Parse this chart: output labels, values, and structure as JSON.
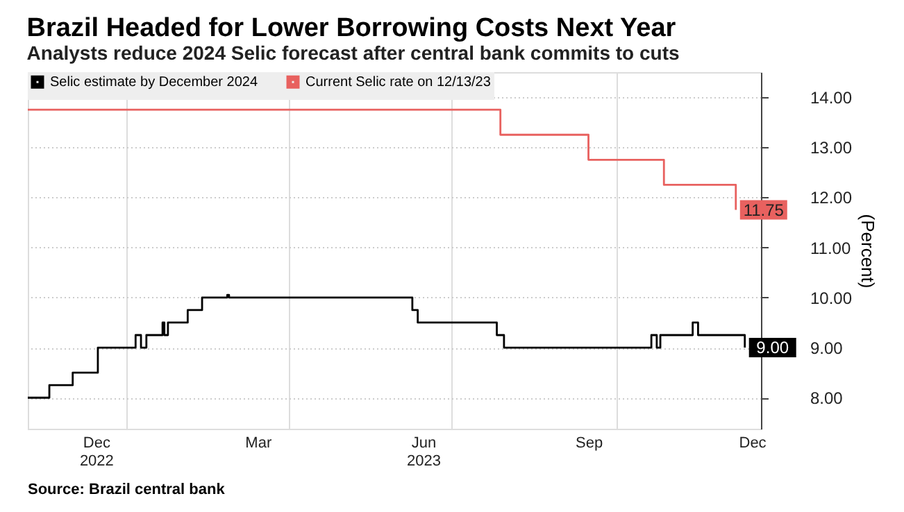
{
  "chart_data": {
    "type": "step",
    "title": "Brazil Headed for Lower Borrowing Costs Next Year",
    "subtitle": "Analysts reduce 2024 Selic forecast after central bank commits to cuts",
    "ylabel": "(Percent)",
    "xlim": [
      "2022-11-07",
      "2023-12-20"
    ],
    "xticks": [
      {
        "value": "2022-12-15",
        "label": "Dec\n2022"
      },
      {
        "value": "2023-03-15",
        "label": "Mar"
      },
      {
        "value": "2023-06-15",
        "label": "Jun\n2023"
      },
      {
        "value": "2023-09-15",
        "label": "Sep"
      },
      {
        "value": "2023-12-15",
        "label": "Dec"
      },
      {
        "value": "2023-01-01",
        "label": null
      },
      {
        "value": "2023-04-01",
        "label": null
      },
      {
        "value": "2023-07-01T00:01",
        "label": null
      },
      {
        "value": "2023-10-01",
        "label": null
      }
    ],
    "ylim": [
      7.38,
      14.5
    ],
    "yticks": [
      {
        "value": 8,
        "label": "8.00"
      },
      {
        "value": 9,
        "label": "9.00"
      },
      {
        "value": 10,
        "label": "10.00"
      },
      {
        "value": 11,
        "label": "11.00"
      },
      {
        "value": 12,
        "label": "12.00"
      },
      {
        "value": 13,
        "label": "13.00"
      },
      {
        "value": 14,
        "label": "14.00"
      }
    ],
    "grid": true,
    "legend": "top left",
    "series": [
      {
        "name": "Selic estimate by December 2024",
        "color": "#000000",
        "x": [
          "2022-11-07",
          "2022-11-19",
          "2022-12-02",
          "2022-12-16",
          "2023-01-06",
          "2023-01-09",
          "2023-01-12",
          "2023-01-21",
          "2023-01-22",
          "2023-01-24",
          "2023-02-04",
          "2023-02-12",
          "2023-02-26",
          "2023-02-27",
          "2023-06-09",
          "2023-06-12",
          "2023-07-26",
          "2023-07-30",
          "2023-10-20",
          "2023-10-23",
          "2023-10-25",
          "2023-11-12",
          "2023-11-15",
          "2023-12-11"
        ],
        "values": [
          8.0,
          8.25,
          8.5,
          9.0,
          9.25,
          9.0,
          9.25,
          9.5,
          9.25,
          9.5,
          9.75,
          10.0,
          10.05,
          10.0,
          9.75,
          9.5,
          9.25,
          9.0,
          9.25,
          9.0,
          9.25,
          9.5,
          9.25,
          9.0
        ],
        "value_labels": [
          null,
          null,
          null,
          null,
          null,
          null,
          null,
          null,
          null,
          null,
          null,
          null,
          null,
          null,
          null,
          null,
          null,
          null,
          null,
          null,
          null,
          null,
          null,
          "9.00"
        ]
      },
      {
        "name": "Current Selic rate on 12/13/23",
        "color": "#e8615f",
        "x": [
          "2022-11-07",
          "2023-07-28",
          "2023-09-15",
          "2023-10-27",
          "2023-12-06"
        ],
        "values": [
          13.75,
          13.25,
          12.75,
          12.25,
          11.75
        ],
        "value_labels": [
          null,
          null,
          null,
          null,
          "11.75"
        ]
      }
    ],
    "annotations": [
      "Source: Brazil central bank"
    ]
  }
}
